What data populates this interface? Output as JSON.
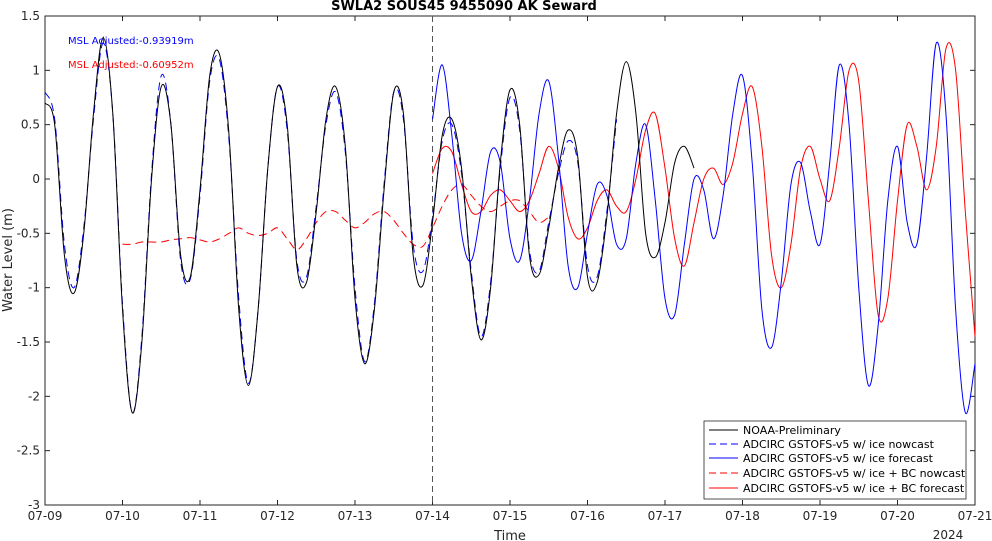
{
  "chart_data": {
    "type": "line",
    "title": "SWLA2 SOUS45 9455090 AK Seward",
    "xlabel": "Time",
    "ylabel": "Water Level (m)",
    "year_label": "2024",
    "x_ticks": [
      "07-09",
      "07-10",
      "07-11",
      "07-12",
      "07-13",
      "07-14",
      "07-15",
      "07-16",
      "07-17",
      "07-18",
      "07-19",
      "07-20",
      "07-21"
    ],
    "y_ticks": [
      "1.5",
      "1",
      "0.5",
      "0",
      "-0.5",
      "-1",
      "-1.5",
      "-2",
      "-2.5",
      "-3"
    ],
    "xlim": [
      "2024-07-09 00:00",
      "2024-07-21 00:00"
    ],
    "ylim": [
      -3,
      1.5
    ],
    "nowcast_end": "2024-07-14 00:00",
    "annotations": [
      {
        "text": "MSL Adjusted:-0.93919m",
        "color": "#0000ff"
      },
      {
        "text": "MSL Adjusted:-0.60952m",
        "color": "#ff0000"
      }
    ],
    "legend_position": "bottom-right",
    "series": [
      {
        "name": "NOAA-Preliminary",
        "color": "#000000",
        "style": "solid",
        "date_start": "2024-07-09 00:00",
        "step_hours": 3,
        "values": [
          0.7,
          0.5,
          -0.7,
          -1.05,
          -0.5,
          0.6,
          1.3,
          0.6,
          -1.2,
          -2.15,
          -1.5,
          0.0,
          0.85,
          0.5,
          -0.7,
          -0.9,
          -0.1,
          0.95,
          1.15,
          0.4,
          -1.2,
          -1.9,
          -1.2,
          0.1,
          0.85,
          0.5,
          -0.8,
          -0.95,
          -0.3,
          0.55,
          0.85,
          0.3,
          -1.1,
          -1.7,
          -1.2,
          -0.1,
          0.8,
          0.6,
          -0.7,
          -0.98,
          -0.4,
          0.4,
          0.55,
          0.1,
          -0.9,
          -1.48,
          -1.0,
          0.15,
          0.82,
          0.5,
          -0.7,
          -0.88,
          -0.45,
          0.1,
          0.45,
          0.2,
          -0.9,
          -0.95,
          -0.35,
          0.6,
          1.08,
          0.6,
          -0.5,
          -0.72,
          -0.4,
          0.15,
          0.3,
          0.1
        ]
      },
      {
        "name": "ADCIRC GSTOFS-v5 w/ ice nowcast",
        "color": "#0000ff",
        "style": "dashed",
        "date_start": "2024-07-09 00:00",
        "step_hours": 3,
        "values": [
          0.8,
          0.55,
          -0.6,
          -1.0,
          -0.45,
          0.55,
          1.25,
          0.6,
          -1.15,
          -2.15,
          -1.45,
          0.05,
          0.95,
          0.5,
          -0.75,
          -0.92,
          -0.15,
          0.9,
          1.1,
          0.35,
          -1.1,
          -1.88,
          -1.2,
          0.1,
          0.85,
          0.45,
          -0.75,
          -0.9,
          -0.25,
          0.5,
          0.8,
          0.25,
          -1.0,
          -1.68,
          -1.15,
          -0.05,
          0.8,
          0.55,
          -0.6,
          -0.85,
          -0.35,
          0.35,
          0.5,
          0.05,
          -0.85,
          -1.45,
          -0.95,
          0.1,
          0.75,
          0.45,
          -0.65,
          -0.85,
          -0.4,
          0.05,
          0.35,
          0.15,
          -0.8,
          -0.9,
          -0.3,
          0.55
        ]
      },
      {
        "name": "ADCIRC GSTOFS-v5 w/ ice forecast",
        "color": "#0000ff",
        "style": "solid",
        "date_start": "2024-07-14 00:00",
        "step_hours": 3,
        "values": [
          0.55,
          1.05,
          0.4,
          -0.5,
          -0.75,
          -0.3,
          0.25,
          0.15,
          -0.55,
          -0.75,
          -0.2,
          0.6,
          0.9,
          0.2,
          -0.8,
          -1.0,
          -0.5,
          -0.05,
          -0.15,
          -0.6,
          -0.55,
          0.15,
          0.5,
          -0.2,
          -1.1,
          -1.25,
          -0.6,
          0.0,
          -0.1,
          -0.55,
          -0.15,
          0.6,
          0.95,
          0.15,
          -1.2,
          -1.55,
          -0.95,
          -0.05,
          0.15,
          -0.3,
          -0.6,
          0.15,
          1.05,
          0.5,
          -1.0,
          -1.9,
          -1.35,
          -0.2,
          0.3,
          -0.4,
          -0.6,
          0.2,
          1.25,
          0.6,
          -1.2,
          -2.15,
          -1.7,
          -0.3,
          0.5,
          -0.2,
          -0.65,
          0.1,
          1.35,
          0.8,
          -0.8,
          -2.25,
          -2.0,
          -0.4,
          0.6,
          0.2
        ]
      },
      {
        "name": "ADCIRC GSTOFS-v5 w/ ice + BC nowcast",
        "color": "#ff0000",
        "style": "dashed",
        "date_start": "2024-07-10 00:00",
        "step_hours": 3,
        "values": [
          -0.6,
          -0.6,
          -0.58,
          -0.58,
          -0.58,
          -0.56,
          -0.55,
          -0.54,
          -0.56,
          -0.58,
          -0.55,
          -0.5,
          -0.45,
          -0.5,
          -0.52,
          -0.5,
          -0.45,
          -0.55,
          -0.65,
          -0.55,
          -0.4,
          -0.3,
          -0.3,
          -0.38,
          -0.45,
          -0.4,
          -0.32,
          -0.3,
          -0.38,
          -0.5,
          -0.6,
          -0.62,
          -0.45,
          -0.25,
          -0.1,
          -0.05,
          -0.15,
          -0.25,
          -0.3,
          -0.25,
          -0.2,
          -0.2,
          -0.3,
          -0.4,
          -0.35
        ]
      },
      {
        "name": "ADCIRC GSTOFS-v5 w/ ice + BC forecast",
        "color": "#ff0000",
        "style": "solid",
        "date_start": "2024-07-14 00:00",
        "step_hours": 3,
        "values": [
          0.05,
          0.28,
          0.25,
          -0.05,
          -0.3,
          -0.3,
          -0.15,
          -0.1,
          -0.2,
          -0.3,
          -0.2,
          0.05,
          0.3,
          0.1,
          -0.35,
          -0.55,
          -0.45,
          -0.2,
          -0.1,
          -0.25,
          -0.3,
          0.0,
          0.45,
          0.6,
          0.1,
          -0.55,
          -0.8,
          -0.4,
          0.0,
          0.1,
          -0.05,
          0.15,
          0.6,
          0.85,
          0.3,
          -0.7,
          -1.0,
          -0.6,
          0.1,
          0.3,
          0.0,
          -0.2,
          0.3,
          1.0,
          0.9,
          -0.2,
          -1.25,
          -1.1,
          -0.2,
          0.5,
          0.3,
          -0.1,
          0.3,
          1.2,
          1.0,
          -0.3,
          -1.45,
          -1.3,
          -0.3,
          0.6,
          0.5,
          0.1,
          0.3,
          1.3,
          1.0,
          -0.5,
          -1.65,
          -1.3,
          -0.2,
          0.75
        ]
      }
    ]
  }
}
